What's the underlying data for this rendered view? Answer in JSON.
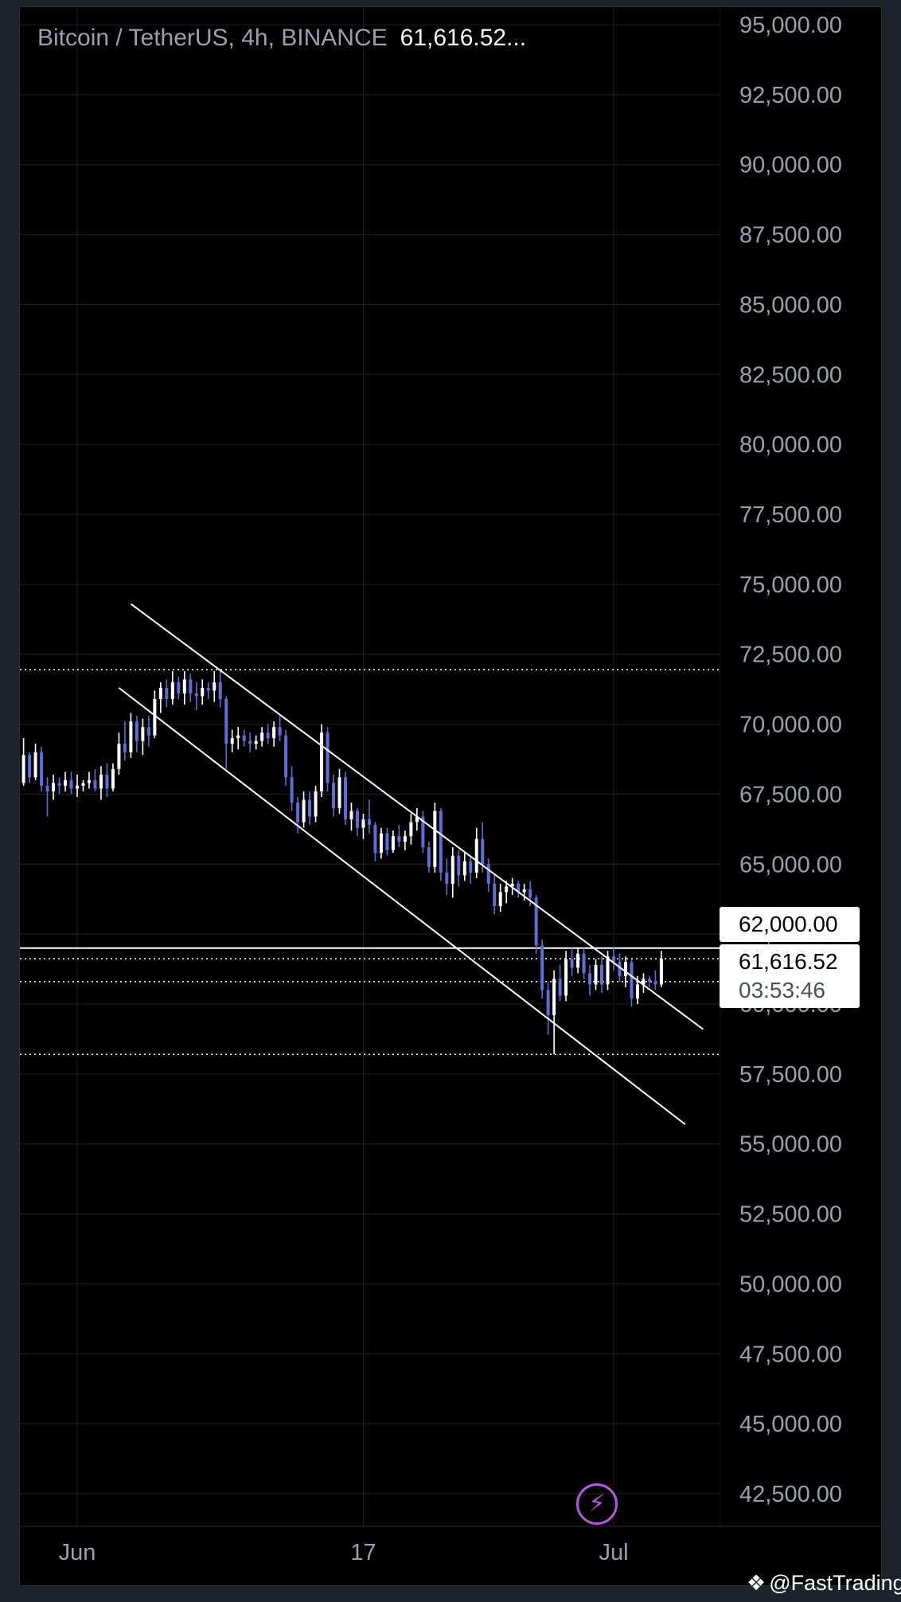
{
  "header": {
    "symbol": "Bitcoin / TetherUS, 4h, BINANCE",
    "last_price": "61,616.52..."
  },
  "price_boxes": {
    "level": "62,000.00",
    "last": "61,616.52",
    "countdown": "03:53:46"
  },
  "buttons": {
    "bolt_icon": "lightning-bolt-icon"
  },
  "watermark": {
    "text": "@FastTrading"
  },
  "colors": {
    "background": "#000000",
    "grid": "#1c1f26",
    "candle_up": "#ffffff",
    "candle_down": "#5b6fd6",
    "lines": "#ffffff",
    "axis_text": "#9aa0ad",
    "bolt": "#b45bd8"
  },
  "chart_data": {
    "type": "candlestick",
    "title": "Bitcoin / TetherUS, 4h, BINANCE",
    "y_ticks": [
      "95,000.00",
      "92,500.00",
      "90,000.00",
      "87,500.00",
      "85,000.00",
      "82,500.00",
      "80,000.00",
      "77,500.00",
      "75,000.00",
      "72,500.00",
      "70,000.00",
      "67,500.00",
      "65,000.00",
      "62,500.00",
      "60,000.00",
      "57,500.00",
      "55,000.00",
      "52,500.00",
      "50,000.00",
      "47,500.00",
      "45,000.00",
      "42,500.00"
    ],
    "ylim": [
      41500,
      95000
    ],
    "x_ticks": [
      {
        "label": "Jun",
        "date": "2024-06-01"
      },
      {
        "label": "17",
        "date": "2024-06-17"
      },
      {
        "label": "Jul",
        "date": "2024-07-01"
      }
    ],
    "xlim": [
      "2024-05-28",
      "2024-07-07"
    ],
    "grid": true,
    "candles": [
      {
        "t": "2024-05-28 00:00",
        "o": 68000,
        "h": 68700,
        "l": 67300,
        "c": 67600
      },
      {
        "t": "2024-05-28 08:00",
        "o": 67600,
        "h": 68700,
        "l": 67400,
        "c": 68400
      },
      {
        "t": "2024-05-28 16:00",
        "o": 68400,
        "h": 69100,
        "l": 67600,
        "c": 67900
      },
      {
        "t": "2024-05-29 00:00",
        "o": 67900,
        "h": 69500,
        "l": 67800,
        "c": 68900
      },
      {
        "t": "2024-05-29 08:00",
        "o": 68900,
        "h": 69000,
        "l": 67900,
        "c": 68100
      },
      {
        "t": "2024-05-29 16:00",
        "o": 68100,
        "h": 69300,
        "l": 68000,
        "c": 69000
      },
      {
        "t": "2024-05-30 00:00",
        "o": 69000,
        "h": 69200,
        "l": 67600,
        "c": 67800
      },
      {
        "t": "2024-05-30 08:00",
        "o": 67800,
        "h": 68100,
        "l": 66700,
        "c": 67600
      },
      {
        "t": "2024-05-30 16:00",
        "o": 67600,
        "h": 68200,
        "l": 67300,
        "c": 67900
      },
      {
        "t": "2024-05-31 00:00",
        "o": 67900,
        "h": 68100,
        "l": 67500,
        "c": 67800
      },
      {
        "t": "2024-05-31 08:00",
        "o": 67800,
        "h": 68300,
        "l": 67600,
        "c": 68000
      },
      {
        "t": "2024-05-31 16:00",
        "o": 68000,
        "h": 68300,
        "l": 67500,
        "c": 67700
      },
      {
        "t": "2024-06-01 00:00",
        "o": 67700,
        "h": 68200,
        "l": 67400,
        "c": 67800
      },
      {
        "t": "2024-06-01 08:00",
        "o": 67800,
        "h": 68000,
        "l": 67600,
        "c": 67900
      },
      {
        "t": "2024-06-01 16:00",
        "o": 67900,
        "h": 68300,
        "l": 67700,
        "c": 68000
      },
      {
        "t": "2024-06-02 00:00",
        "o": 68000,
        "h": 68400,
        "l": 67600,
        "c": 67700
      },
      {
        "t": "2024-06-02 08:00",
        "o": 67700,
        "h": 68500,
        "l": 67300,
        "c": 68200
      },
      {
        "t": "2024-06-02 16:00",
        "o": 68200,
        "h": 68600,
        "l": 67400,
        "c": 67700
      },
      {
        "t": "2024-06-03 00:00",
        "o": 67700,
        "h": 68600,
        "l": 67600,
        "c": 68400
      },
      {
        "t": "2024-06-03 08:00",
        "o": 68400,
        "h": 69700,
        "l": 68200,
        "c": 69300
      },
      {
        "t": "2024-06-03 16:00",
        "o": 69300,
        "h": 70100,
        "l": 68700,
        "c": 69000
      },
      {
        "t": "2024-06-04 00:00",
        "o": 69000,
        "h": 70400,
        "l": 68800,
        "c": 70100
      },
      {
        "t": "2024-06-04 08:00",
        "o": 70100,
        "h": 70300,
        "l": 69000,
        "c": 69400
      },
      {
        "t": "2024-06-04 16:00",
        "o": 69400,
        "h": 70200,
        "l": 68900,
        "c": 69900
      },
      {
        "t": "2024-06-05 00:00",
        "o": 69900,
        "h": 70300,
        "l": 69200,
        "c": 69600
      },
      {
        "t": "2024-06-05 08:00",
        "o": 69600,
        "h": 71200,
        "l": 69500,
        "c": 70900
      },
      {
        "t": "2024-06-05 16:00",
        "o": 70900,
        "h": 71500,
        "l": 70400,
        "c": 71300
      },
      {
        "t": "2024-06-06 00:00",
        "o": 71300,
        "h": 71600,
        "l": 70600,
        "c": 70900
      },
      {
        "t": "2024-06-06 08:00",
        "o": 70900,
        "h": 71900,
        "l": 70700,
        "c": 71500
      },
      {
        "t": "2024-06-06 16:00",
        "o": 71500,
        "h": 71700,
        "l": 70900,
        "c": 71100
      },
      {
        "t": "2024-06-07 00:00",
        "o": 71100,
        "h": 71900,
        "l": 70700,
        "c": 71600
      },
      {
        "t": "2024-06-07 08:00",
        "o": 71600,
        "h": 71800,
        "l": 70800,
        "c": 71100
      },
      {
        "t": "2024-06-07 16:00",
        "o": 71100,
        "h": 71500,
        "l": 70500,
        "c": 71000
      },
      {
        "t": "2024-06-08 00:00",
        "o": 71000,
        "h": 71600,
        "l": 70700,
        "c": 71300
      },
      {
        "t": "2024-06-08 08:00",
        "o": 71300,
        "h": 71500,
        "l": 70900,
        "c": 71200
      },
      {
        "t": "2024-06-08 16:00",
        "o": 71200,
        "h": 71900,
        "l": 70800,
        "c": 71500
      },
      {
        "t": "2024-06-09 00:00",
        "o": 71500,
        "h": 71950,
        "l": 70600,
        "c": 70900
      },
      {
        "t": "2024-06-09 08:00",
        "o": 70900,
        "h": 71000,
        "l": 68400,
        "c": 69300
      },
      {
        "t": "2024-06-09 16:00",
        "o": 69300,
        "h": 69800,
        "l": 69000,
        "c": 69500
      },
      {
        "t": "2024-06-10 00:00",
        "o": 69500,
        "h": 69900,
        "l": 69100,
        "c": 69600
      },
      {
        "t": "2024-06-10 08:00",
        "o": 69600,
        "h": 69800,
        "l": 69200,
        "c": 69400
      },
      {
        "t": "2024-06-10 16:00",
        "o": 69400,
        "h": 69700,
        "l": 69000,
        "c": 69300
      },
      {
        "t": "2024-06-11 00:00",
        "o": 69300,
        "h": 69600,
        "l": 69100,
        "c": 69400
      },
      {
        "t": "2024-06-11 08:00",
        "o": 69400,
        "h": 69900,
        "l": 69200,
        "c": 69700
      },
      {
        "t": "2024-06-11 16:00",
        "o": 69700,
        "h": 70000,
        "l": 69300,
        "c": 69500
      },
      {
        "t": "2024-06-12 00:00",
        "o": 69500,
        "h": 70100,
        "l": 69200,
        "c": 69900
      },
      {
        "t": "2024-06-12 08:00",
        "o": 69900,
        "h": 70300,
        "l": 69400,
        "c": 69600
      },
      {
        "t": "2024-06-12 16:00",
        "o": 69600,
        "h": 69800,
        "l": 67800,
        "c": 68100
      },
      {
        "t": "2024-06-13 00:00",
        "o": 68100,
        "h": 68500,
        "l": 66900,
        "c": 67200
      },
      {
        "t": "2024-06-13 08:00",
        "o": 67200,
        "h": 67400,
        "l": 66100,
        "c": 66500
      },
      {
        "t": "2024-06-13 16:00",
        "o": 66500,
        "h": 67600,
        "l": 66300,
        "c": 67300
      },
      {
        "t": "2024-06-14 00:00",
        "o": 67300,
        "h": 67600,
        "l": 66400,
        "c": 66700
      },
      {
        "t": "2024-06-14 08:00",
        "o": 66700,
        "h": 67800,
        "l": 66500,
        "c": 67600
      },
      {
        "t": "2024-06-14 16:00",
        "o": 67600,
        "h": 70000,
        "l": 67400,
        "c": 69700
      },
      {
        "t": "2024-06-15 00:00",
        "o": 69700,
        "h": 69900,
        "l": 67600,
        "c": 67900
      },
      {
        "t": "2024-06-15 08:00",
        "o": 67900,
        "h": 68200,
        "l": 66700,
        "c": 67000
      },
      {
        "t": "2024-06-15 16:00",
        "o": 67000,
        "h": 68400,
        "l": 66800,
        "c": 68100
      },
      {
        "t": "2024-06-16 00:00",
        "o": 68100,
        "h": 68300,
        "l": 66400,
        "c": 66600
      },
      {
        "t": "2024-06-16 08:00",
        "o": 66600,
        "h": 67200,
        "l": 66200,
        "c": 66900
      },
      {
        "t": "2024-06-16 16:00",
        "o": 66900,
        "h": 67000,
        "l": 66000,
        "c": 66300
      },
      {
        "t": "2024-06-17 00:00",
        "o": 66300,
        "h": 66800,
        "l": 65900,
        "c": 66600
      },
      {
        "t": "2024-06-17 08:00",
        "o": 66600,
        "h": 67300,
        "l": 66100,
        "c": 66400
      },
      {
        "t": "2024-06-17 16:00",
        "o": 66400,
        "h": 66500,
        "l": 65100,
        "c": 65400
      },
      {
        "t": "2024-06-18 00:00",
        "o": 65400,
        "h": 66300,
        "l": 65200,
        "c": 66100
      },
      {
        "t": "2024-06-18 08:00",
        "o": 66100,
        "h": 66300,
        "l": 65300,
        "c": 65500
      },
      {
        "t": "2024-06-18 16:00",
        "o": 65500,
        "h": 66200,
        "l": 65400,
        "c": 66000
      },
      {
        "t": "2024-06-19 00:00",
        "o": 66000,
        "h": 66400,
        "l": 65600,
        "c": 65800
      },
      {
        "t": "2024-06-19 08:00",
        "o": 65800,
        "h": 66200,
        "l": 65500,
        "c": 66000
      },
      {
        "t": "2024-06-19 16:00",
        "o": 66000,
        "h": 66800,
        "l": 65700,
        "c": 66500
      },
      {
        "t": "2024-06-20 00:00",
        "o": 66500,
        "h": 67000,
        "l": 66200,
        "c": 66700
      },
      {
        "t": "2024-06-20 08:00",
        "o": 66700,
        "h": 66900,
        "l": 65400,
        "c": 65600
      },
      {
        "t": "2024-06-20 16:00",
        "o": 65600,
        "h": 65800,
        "l": 64700,
        "c": 64900
      },
      {
        "t": "2024-06-21 00:00",
        "o": 64900,
        "h": 67200,
        "l": 64700,
        "c": 66900
      },
      {
        "t": "2024-06-21 08:00",
        "o": 66900,
        "h": 67000,
        "l": 64400,
        "c": 64700
      },
      {
        "t": "2024-06-21 16:00",
        "o": 64700,
        "h": 65200,
        "l": 63900,
        "c": 64300
      },
      {
        "t": "2024-06-22 00:00",
        "o": 64300,
        "h": 65600,
        "l": 63800,
        "c": 65300
      },
      {
        "t": "2024-06-22 08:00",
        "o": 65300,
        "h": 65500,
        "l": 64200,
        "c": 64600
      },
      {
        "t": "2024-06-22 16:00",
        "o": 64600,
        "h": 65400,
        "l": 64400,
        "c": 65100
      },
      {
        "t": "2024-06-23 00:00",
        "o": 65100,
        "h": 65300,
        "l": 64300,
        "c": 64700
      },
      {
        "t": "2024-06-23 08:00",
        "o": 64700,
        "h": 66300,
        "l": 64500,
        "c": 65900
      },
      {
        "t": "2024-06-23 16:00",
        "o": 65900,
        "h": 66500,
        "l": 64700,
        "c": 65000
      },
      {
        "t": "2024-06-24 00:00",
        "o": 65000,
        "h": 65200,
        "l": 64000,
        "c": 64300
      },
      {
        "t": "2024-06-24 08:00",
        "o": 64300,
        "h": 64600,
        "l": 63200,
        "c": 63500
      },
      {
        "t": "2024-06-24 16:00",
        "o": 63500,
        "h": 64300,
        "l": 63300,
        "c": 64000
      },
      {
        "t": "2024-06-25 00:00",
        "o": 64000,
        "h": 64400,
        "l": 63600,
        "c": 64200
      },
      {
        "t": "2024-06-25 08:00",
        "o": 64200,
        "h": 64500,
        "l": 63900,
        "c": 64300
      },
      {
        "t": "2024-06-25 16:00",
        "o": 64300,
        "h": 64400,
        "l": 63800,
        "c": 64000
      },
      {
        "t": "2024-06-26 00:00",
        "o": 64000,
        "h": 64300,
        "l": 63700,
        "c": 64100
      },
      {
        "t": "2024-06-26 08:00",
        "o": 64100,
        "h": 64400,
        "l": 63500,
        "c": 63800
      },
      {
        "t": "2024-06-26 16:00",
        "o": 63800,
        "h": 63900,
        "l": 61800,
        "c": 62100
      },
      {
        "t": "2024-06-27 00:00",
        "o": 62100,
        "h": 62300,
        "l": 60200,
        "c": 60500
      },
      {
        "t": "2024-06-27 08:00",
        "o": 60500,
        "h": 60800,
        "l": 58900,
        "c": 59600
      },
      {
        "t": "2024-06-27 16:00",
        "o": 59600,
        "h": 61200,
        "l": 58200,
        "c": 60900
      },
      {
        "t": "2024-06-28 00:00",
        "o": 60900,
        "h": 61400,
        "l": 60100,
        "c": 60300
      },
      {
        "t": "2024-06-28 08:00",
        "o": 60300,
        "h": 61900,
        "l": 60100,
        "c": 61600
      },
      {
        "t": "2024-06-28 16:00",
        "o": 61600,
        "h": 62000,
        "l": 61000,
        "c": 61300
      },
      {
        "t": "2024-06-29 00:00",
        "o": 61300,
        "h": 62000,
        "l": 61100,
        "c": 61800
      },
      {
        "t": "2024-06-29 08:00",
        "o": 61800,
        "h": 62000,
        "l": 60900,
        "c": 61100
      },
      {
        "t": "2024-06-29 16:00",
        "o": 61100,
        "h": 61400,
        "l": 60300,
        "c": 60700
      },
      {
        "t": "2024-06-30 00:00",
        "o": 60700,
        "h": 61600,
        "l": 60500,
        "c": 61400
      },
      {
        "t": "2024-06-30 08:00",
        "o": 61400,
        "h": 61700,
        "l": 60400,
        "c": 60700
      },
      {
        "t": "2024-06-30 16:00",
        "o": 60700,
        "h": 61900,
        "l": 60500,
        "c": 61700
      },
      {
        "t": "2024-07-01 00:00",
        "o": 61700,
        "h": 62000,
        "l": 61200,
        "c": 61500
      },
      {
        "t": "2024-07-01 08:00",
        "o": 61500,
        "h": 61800,
        "l": 60800,
        "c": 61000
      },
      {
        "t": "2024-07-01 16:00",
        "o": 61000,
        "h": 61700,
        "l": 60600,
        "c": 61500
      },
      {
        "t": "2024-07-02 00:00",
        "o": 61500,
        "h": 61600,
        "l": 59900,
        "c": 60200
      },
      {
        "t": "2024-07-02 08:00",
        "o": 60200,
        "h": 61000,
        "l": 60000,
        "c": 60700
      },
      {
        "t": "2024-07-02 16:00",
        "o": 60700,
        "h": 61100,
        "l": 60400,
        "c": 60900
      },
      {
        "t": "2024-07-03 00:00",
        "o": 60900,
        "h": 61000,
        "l": 60600,
        "c": 60800
      },
      {
        "t": "2024-07-03 08:00",
        "o": 60800,
        "h": 61200,
        "l": 60500,
        "c": 60700
      },
      {
        "t": "2024-07-03 16:00",
        "o": 60700,
        "h": 61900,
        "l": 60600,
        "c": 61617
      }
    ],
    "horizontal_lines": [
      {
        "price": 71950,
        "style": "dotted"
      },
      {
        "price": 62000,
        "style": "solid"
      },
      {
        "price": 61617,
        "style": "dotted"
      },
      {
        "price": 60800,
        "style": "dotted"
      },
      {
        "price": 58200,
        "style": "dotted"
      }
    ],
    "trend_lines": [
      {
        "from": {
          "t": "2024-06-04 00:00",
          "price": 74300
        },
        "to": {
          "t": "2024-07-06 00:00",
          "price": 59100
        }
      },
      {
        "from": {
          "t": "2024-06-03 08:00",
          "price": 71300
        },
        "to": {
          "t": "2024-07-05 00:00",
          "price": 55700
        }
      }
    ]
  }
}
